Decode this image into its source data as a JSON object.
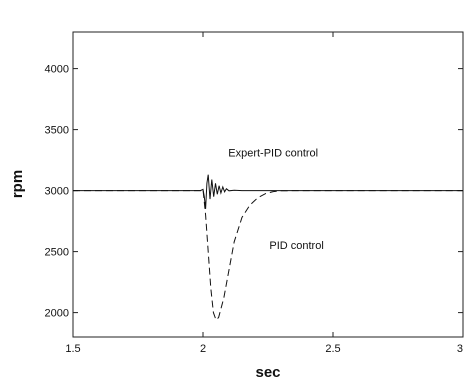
{
  "chart_data": {
    "type": "line",
    "title": "",
    "xlabel": "sec",
    "ylabel": "rpm",
    "xlim": [
      1.5,
      3.0
    ],
    "ylim": [
      1800,
      4300
    ],
    "x_ticks": [
      1.5,
      2.0,
      2.5,
      3.0
    ],
    "x_tick_labels": [
      "1.5",
      "2",
      "2.5",
      "3"
    ],
    "y_ticks": [
      2000,
      2500,
      3000,
      3500,
      4000
    ],
    "y_tick_labels": [
      "2000",
      "2500",
      "3000",
      "3500",
      "4000"
    ],
    "grid": false,
    "annotations": [
      {
        "text": "Expert-PID control",
        "x": 2.27,
        "y": 3280
      },
      {
        "text": "PID control",
        "x": 2.36,
        "y": 2520
      }
    ],
    "series": [
      {
        "name": "Expert-PID control",
        "style": "solid",
        "x": [
          1.5,
          1.99,
          2.0,
          2.005,
          2.01,
          2.015,
          2.02,
          2.027,
          2.034,
          2.041,
          2.048,
          2.055,
          2.062,
          2.069,
          2.076,
          2.083,
          2.09,
          2.1,
          2.12,
          2.15,
          3.0
        ],
        "y": [
          3000,
          3000,
          3010,
          2950,
          2850,
          3060,
          3130,
          2930,
          3090,
          2950,
          3060,
          2970,
          3040,
          2980,
          3030,
          2990,
          3015,
          2998,
          3003,
          3000,
          3000
        ]
      },
      {
        "name": "PID control",
        "style": "dashed",
        "x": [
          1.5,
          1.995,
          2.0,
          2.01,
          2.02,
          2.03,
          2.04,
          2.05,
          2.06,
          2.08,
          2.1,
          2.12,
          2.15,
          2.18,
          2.21,
          2.24,
          2.27,
          2.3,
          2.35,
          3.0
        ],
        "y": [
          3000,
          3000,
          3010,
          2800,
          2500,
          2200,
          2000,
          1940,
          1960,
          2120,
          2350,
          2580,
          2780,
          2880,
          2940,
          2975,
          2992,
          2998,
          3000,
          3000
        ]
      }
    ]
  }
}
